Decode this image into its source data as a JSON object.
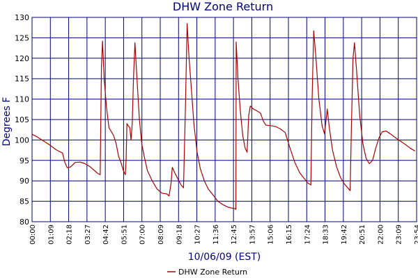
{
  "chart_data": {
    "type": "line",
    "title": "DHW Zone Return",
    "xlabel": "10/06/09 (EST)",
    "ylabel": "Degrees F",
    "ylim": [
      80,
      130
    ],
    "y_ticks": [
      80,
      85,
      90,
      95,
      100,
      105,
      110,
      115,
      120,
      125,
      130
    ],
    "x_ticks": [
      "00:00",
      "01:09",
      "02:18",
      "03:27",
      "04:42",
      "05:51",
      "07:00",
      "08:09",
      "09:18",
      "10:27",
      "11:36",
      "12:45",
      "13:57",
      "15:06",
      "16:15",
      "17:24",
      "18:33",
      "19:42",
      "20:51",
      "22:00",
      "23:09",
      "23:54"
    ],
    "grid": true,
    "legend_position": "bottom-center",
    "colors": {
      "series": "#aa0000",
      "grid": "#00007f",
      "title": "#00007f"
    },
    "series": [
      {
        "name": "DHW Zone Return",
        "points": [
          [
            0.0,
            101.4
          ],
          [
            0.3,
            100.8
          ],
          [
            0.7,
            99.8
          ],
          [
            1.1,
            98.8
          ],
          [
            1.5,
            97.6
          ],
          [
            1.9,
            96.8
          ],
          [
            2.05,
            94.5
          ],
          [
            2.2,
            93.2
          ],
          [
            2.4,
            93.4
          ],
          [
            2.7,
            94.5
          ],
          [
            3.0,
            94.6
          ],
          [
            3.3,
            94.2
          ],
          [
            3.6,
            93.5
          ],
          [
            3.9,
            92.5
          ],
          [
            4.1,
            91.8
          ],
          [
            4.25,
            91.5
          ],
          [
            4.33,
            118.0
          ],
          [
            4.4,
            124.2
          ],
          [
            4.5,
            115.0
          ],
          [
            4.65,
            108.0
          ],
          [
            4.8,
            103.0
          ],
          [
            4.95,
            102.0
          ],
          [
            5.1,
            101.0
          ],
          [
            5.25,
            99.0
          ],
          [
            5.4,
            96.0
          ],
          [
            5.55,
            94.5
          ],
          [
            5.7,
            92.5
          ],
          [
            5.82,
            91.5
          ],
          [
            5.87,
            95.0
          ],
          [
            5.92,
            104.0
          ],
          [
            6.0,
            103.5
          ],
          [
            6.1,
            103.0
          ],
          [
            6.18,
            100.0
          ],
          [
            6.25,
            104.0
          ],
          [
            6.33,
            115.0
          ],
          [
            6.42,
            123.8
          ],
          [
            6.55,
            115.0
          ],
          [
            6.7,
            105.0
          ],
          [
            6.85,
            99.0
          ],
          [
            7.0,
            96.0
          ],
          [
            7.2,
            92.5
          ],
          [
            7.5,
            90.0
          ],
          [
            7.8,
            88.0
          ],
          [
            8.1,
            87.0
          ],
          [
            8.4,
            86.8
          ],
          [
            8.55,
            86.3
          ],
          [
            8.68,
            89.5
          ],
          [
            8.75,
            93.3
          ],
          [
            8.9,
            92.0
          ],
          [
            9.1,
            90.5
          ],
          [
            9.3,
            89.0
          ],
          [
            9.45,
            88.3
          ],
          [
            9.58,
            109.0
          ],
          [
            9.68,
            128.5
          ],
          [
            9.8,
            120.0
          ],
          [
            9.95,
            112.0
          ],
          [
            10.1,
            104.0
          ],
          [
            10.3,
            97.0
          ],
          [
            10.5,
            93.0
          ],
          [
            10.75,
            90.0
          ],
          [
            11.0,
            88.0
          ],
          [
            11.3,
            86.5
          ],
          [
            11.6,
            85.0
          ],
          [
            11.9,
            84.2
          ],
          [
            12.2,
            83.6
          ],
          [
            12.5,
            83.3
          ],
          [
            12.68,
            83.2
          ],
          [
            12.72,
            83.0
          ],
          [
            12.74,
            124.0
          ],
          [
            12.85,
            115.0
          ],
          [
            13.0,
            107.0
          ],
          [
            13.15,
            101.0
          ],
          [
            13.3,
            98.0
          ],
          [
            13.42,
            97.0
          ],
          [
            13.52,
            106.0
          ],
          [
            13.62,
            108.3
          ],
          [
            13.8,
            107.6
          ],
          [
            14.0,
            107.2
          ],
          [
            14.25,
            106.6
          ],
          [
            14.45,
            104.5
          ],
          [
            14.6,
            103.6
          ],
          [
            14.9,
            103.5
          ],
          [
            15.2,
            103.3
          ],
          [
            15.5,
            102.7
          ],
          [
            15.8,
            101.8
          ],
          [
            16.1,
            98.0
          ],
          [
            16.4,
            94.5
          ],
          [
            16.7,
            92.0
          ],
          [
            17.0,
            90.5
          ],
          [
            17.2,
            89.5
          ],
          [
            17.4,
            89.0
          ],
          [
            17.48,
            110.0
          ],
          [
            17.58,
            126.7
          ],
          [
            17.7,
            121.0
          ],
          [
            17.9,
            110.0
          ],
          [
            18.1,
            103.5
          ],
          [
            18.25,
            101.5
          ],
          [
            18.35,
            105.0
          ],
          [
            18.42,
            107.6
          ],
          [
            18.55,
            103.0
          ],
          [
            18.75,
            97.5
          ],
          [
            19.0,
            93.5
          ],
          [
            19.25,
            90.8
          ],
          [
            19.5,
            89.2
          ],
          [
            19.7,
            88.3
          ],
          [
            19.85,
            87.6
          ],
          [
            19.93,
            103.0
          ],
          [
            20.03,
            120.0
          ],
          [
            20.12,
            123.8
          ],
          [
            20.25,
            117.0
          ],
          [
            20.45,
            106.0
          ],
          [
            20.65,
            99.0
          ],
          [
            20.85,
            95.5
          ],
          [
            21.05,
            94.2
          ],
          [
            21.25,
            95.0
          ],
          [
            21.45,
            98.0
          ],
          [
            21.65,
            100.5
          ],
          [
            21.85,
            102.0
          ],
          [
            22.1,
            102.2
          ],
          [
            22.4,
            101.4
          ],
          [
            22.7,
            100.5
          ],
          [
            23.0,
            99.7
          ],
          [
            23.3,
            98.9
          ],
          [
            23.6,
            98.0
          ],
          [
            23.9,
            97.3
          ]
        ]
      }
    ]
  }
}
